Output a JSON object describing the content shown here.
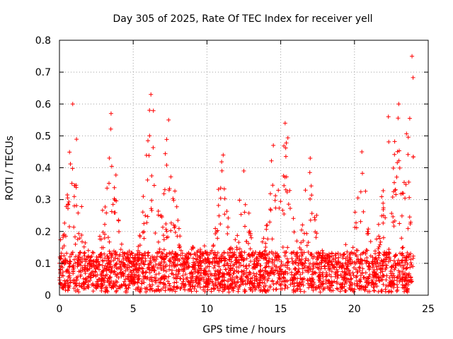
{
  "chart_data": {
    "type": "scatter",
    "title": "Day 305 of 2025, Rate Of TEC Index for receiver yell",
    "xlabel": "GPS time / hours",
    "ylabel": "ROTI / TECUs",
    "xlim": [
      0,
      25
    ],
    "ylim": [
      0,
      0.8
    ],
    "xticks": [
      0,
      5,
      10,
      15,
      20,
      25
    ],
    "xtick_labels": [
      "0",
      "5",
      "10",
      "15",
      "20",
      "25"
    ],
    "yticks": [
      0,
      0.1,
      0.2,
      0.3,
      0.4,
      0.5,
      0.6,
      0.7,
      0.8
    ],
    "ytick_labels": [
      "0",
      "0.1",
      "0.2",
      "0.3",
      "0.4",
      "0.5",
      "0.6",
      "0.7",
      "0.8"
    ],
    "grid": true,
    "marker": "+",
    "series_color": "#ff0000",
    "data_span_hours": [
      0,
      24
    ],
    "baseline_roti": 0.07,
    "activity_peaks": [
      {
        "t": 0.9,
        "max": 0.6
      },
      {
        "t": 3.5,
        "max": 0.57
      },
      {
        "t": 6.2,
        "max": 0.63
      },
      {
        "t": 7.4,
        "max": 0.55
      },
      {
        "t": 11.1,
        "max": 0.44
      },
      {
        "t": 12.5,
        "max": 0.39
      },
      {
        "t": 14.5,
        "max": 0.47
      },
      {
        "t": 15.3,
        "max": 0.54
      },
      {
        "t": 17.0,
        "max": 0.43
      },
      {
        "t": 20.5,
        "max": 0.45
      },
      {
        "t": 22.3,
        "max": 0.56
      },
      {
        "t": 23.0,
        "max": 0.6
      },
      {
        "t": 23.9,
        "max": 0.75
      }
    ]
  }
}
